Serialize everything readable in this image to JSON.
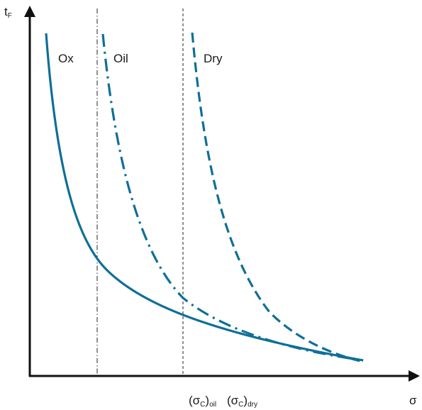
{
  "axes": {
    "y_label": {
      "main": "t",
      "sub": "F"
    },
    "x_label": "σ"
  },
  "curves": [
    {
      "label": "Ox"
    },
    {
      "label": "Oil"
    },
    {
      "label": "Dry"
    }
  ],
  "thresholds": [
    {
      "open": "(σ",
      "sub": "C",
      "close": ")",
      "suffix": "oil"
    },
    {
      "open": "(σ",
      "sub": "C",
      "close": ")",
      "suffix": "dry"
    }
  ]
}
